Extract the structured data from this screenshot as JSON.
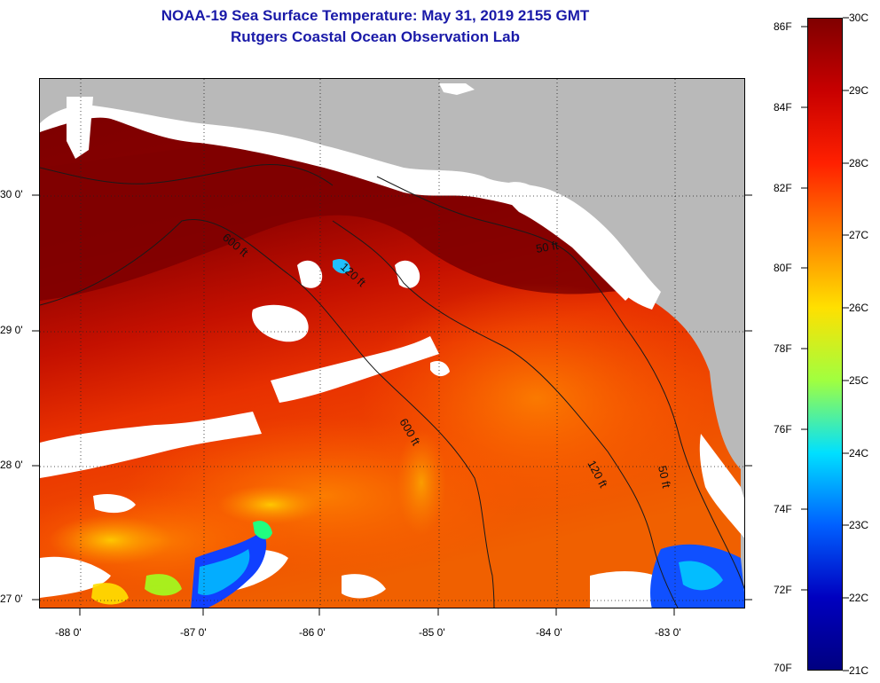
{
  "title": {
    "line1": "NOAA-19 Sea Surface Temperature:  May 31, 2019 2155 GMT",
    "line2": "Rutgers Coastal Ocean Observation Lab"
  },
  "map": {
    "lon_labels": [
      "-88 0'",
      "-87 0'",
      "-86 0'",
      "-85 0'",
      "-84 0'",
      "-83 0'"
    ],
    "lat_labels": [
      "30 0'",
      "29 0'",
      "28 0'",
      "27 0'"
    ],
    "contour_labels": [
      "600 ft",
      "120 ft",
      "50 ft",
      "600 ft",
      "120 ft",
      "50 ft"
    ],
    "contour_values": [
      "600 ft",
      "120 ft",
      "50 ft"
    ],
    "land_color": "#ffffff",
    "nodata_color": "#b9b9b9"
  },
  "colorbar": {
    "fahrenheit": [
      "86F",
      "84F",
      "82F",
      "80F",
      "78F",
      "76F",
      "74F",
      "72F",
      "70F"
    ],
    "celsius": [
      "30C",
      "29C",
      "28C",
      "27C",
      "26C",
      "25C",
      "24C",
      "23C",
      "22C",
      "21C"
    ],
    "range_c": [
      21,
      30
    ],
    "range_f": [
      70,
      86
    ],
    "colors": [
      "#800000",
      "#c80000",
      "#ff2000",
      "#ff8000",
      "#ffe000",
      "#a0ff40",
      "#00e0ff",
      "#0060ff",
      "#0000c0",
      "#000080"
    ]
  }
}
